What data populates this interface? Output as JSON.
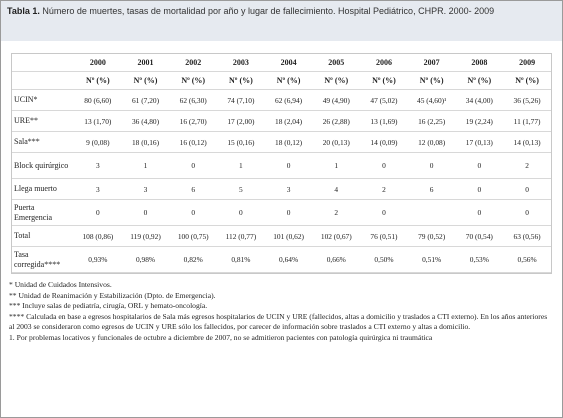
{
  "header": {
    "label": "Tabla 1.",
    "title": "Número de muertes, tasas de mortalidad por año y lugar de fallecimiento. Hospital Pediátrico, CHPR. 2000- 2009"
  },
  "table": {
    "years": [
      "2000",
      "2001",
      "2002",
      "2003",
      "2004",
      "2005",
      "2006",
      "2007",
      "2008",
      "2009"
    ],
    "subheader": "Nº (%)",
    "rows": [
      {
        "label": "UCIN*",
        "cells": [
          "80 (6,60)",
          "61 (7,20)",
          "62 (6,30)",
          "74 (7,10)",
          "62 (6,94)",
          "49 (4,90)",
          "47 (5,02)",
          "45 (4,60)¹",
          "34 (4,00)",
          "36 (5,26)"
        ]
      },
      {
        "label": "URE**",
        "cells": [
          "13 (1,70)",
          "36 (4,80)",
          "16 (2,70)",
          "17 (2,00)",
          "18 (2,04)",
          "26 (2,88)",
          "13 (1,69)",
          "16 (2,25)",
          "19 (2,24)",
          "11 (1,77)"
        ]
      },
      {
        "label": "Sala***",
        "cells": [
          "9 (0,08)",
          "18 (0,16)",
          "16 (0,12)",
          "15 (0,16)",
          "18 (0,12)",
          "20 (0,13)",
          "14 (0,09)",
          "12 (0,08)",
          "17 (0,13)",
          "14 (0,13)"
        ]
      },
      {
        "label": "Block quirúrgico",
        "cells": [
          "3",
          "1",
          "0",
          "1",
          "0",
          "1",
          "0",
          "0",
          "0",
          "2"
        ]
      },
      {
        "label": "Llega muerto",
        "cells": [
          "3",
          "3",
          "6",
          "5",
          "3",
          "4",
          "2",
          "6",
          "0",
          "0"
        ]
      },
      {
        "label": "Puerta Emergencia",
        "cells": [
          "0",
          "0",
          "0",
          "0",
          "0",
          "2",
          "0",
          null,
          "0",
          "0"
        ]
      },
      {
        "label": "Total",
        "cells": [
          "108 (0,86)",
          "119 (0,92)",
          "100 (0,75)",
          "112 (0,77)",
          "101 (0,62)",
          "102 (0,67)",
          "76 (0,51)",
          "79 (0,52)",
          "70 (0,54)",
          "63 (0,56)"
        ]
      },
      {
        "label": "Tasa corregida****",
        "cells": [
          "0,93%",
          "0,98%",
          "0,82%",
          "0,81%",
          "0,64%",
          "0,66%",
          "0,50%",
          "0,51%",
          "0,53%",
          "0,56%"
        ]
      }
    ]
  },
  "footnotes": [
    "* Unidad de Cuidados Intensivos.",
    "** Unidad de Reanimación y Estabilización (Dpto. de Emergencia).",
    "*** Incluye salas de pediatría, cirugía, ORL y hemato-oncología.",
    "**** Calculada en base a egresos hospitalarios de Sala más egresos hospitalarios de UCIN y URE (fallecidos, altas a domicilio y traslados a CTI externo). En los años anteriores al 2003 se consideraron como egresos de UCIN y URE sólo los fallecidos, por carecer de información sobre traslados a CTI externo y altas a domicilio.",
    "1. Por problemas locativos y funcionales de octubre a diciembre de 2007, no se admitieron pacientes con patología quirúrgica ni traumática"
  ]
}
